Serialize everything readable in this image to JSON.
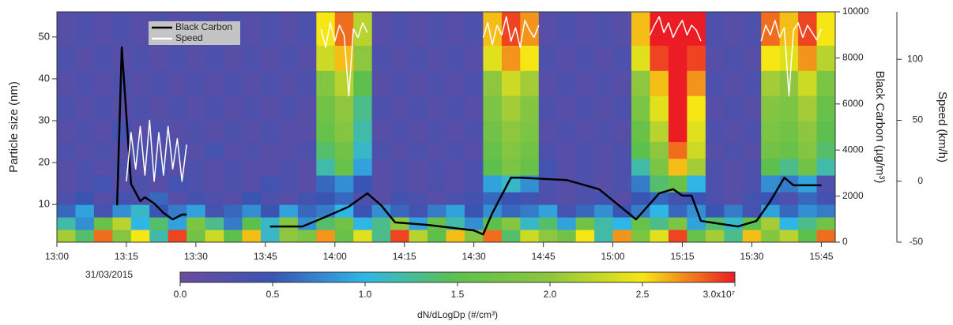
{
  "chart_data": {
    "type": "heatmap",
    "y_label": "Particle size (nm)",
    "y2_label": "Black Carbon (µg/m³)",
    "y3_label": "Speed (km/h)",
    "date_label": "31/03/2015",
    "xlim": [
      780,
      948
    ],
    "xticks": [
      {
        "value": 780,
        "label": "13:00"
      },
      {
        "value": 795,
        "label": "13:15"
      },
      {
        "value": 810,
        "label": "13:30"
      },
      {
        "value": 825,
        "label": "13:45"
      },
      {
        "value": 840,
        "label": "14:00"
      },
      {
        "value": 855,
        "label": "14:15"
      },
      {
        "value": 870,
        "label": "14:30"
      },
      {
        "value": 885,
        "label": "14:45"
      },
      {
        "value": 900,
        "label": "15:00"
      },
      {
        "value": 915,
        "label": "15:15"
      },
      {
        "value": 930,
        "label": "15:30"
      },
      {
        "value": 945,
        "label": "15:45"
      }
    ],
    "ylim": [
      1,
      56
    ],
    "yticks": [
      10,
      20,
      30,
      40,
      50
    ],
    "y2lim": [
      0,
      10000
    ],
    "y2ticks": [
      0,
      2000,
      4000,
      6000,
      8000,
      10000
    ],
    "y3lim": [
      -50,
      139
    ],
    "y3ticks": [
      -50,
      0,
      50,
      100
    ],
    "x_edges": [
      780,
      784,
      788,
      792,
      796,
      800,
      804,
      808,
      812,
      816,
      820,
      824,
      828,
      832,
      836,
      840,
      844,
      848,
      852,
      856,
      860,
      864,
      868,
      872,
      876,
      880,
      884,
      888,
      892,
      896,
      900,
      904,
      908,
      912,
      916,
      920,
      924,
      928,
      932,
      936,
      940,
      944,
      948
    ],
    "y_edges": [
      1,
      4,
      7,
      10,
      13,
      17,
      21,
      25,
      30,
      36,
      42,
      48,
      56
    ],
    "z": [
      [
        2.1,
        1.4,
        2.8,
        1.9,
        2.5,
        1.2,
        2.9,
        1.7,
        2.3,
        1.5,
        2.6,
        1.1,
        2.0,
        1.8,
        2.7,
        1.6,
        2.4,
        1.3,
        2.9,
        2.2,
        1.5,
        2.6,
        1.9,
        2.8,
        1.4,
        2.3,
        2.0,
        1.7,
        2.5,
        1.2,
        2.7,
        1.8,
        2.4,
        2.9,
        1.6,
        2.1,
        1.3,
        2.6,
        1.9,
        2.2,
        1.5,
        2.8
      ],
      [
        1.2,
        0.8,
        1.6,
        2.2,
        1.0,
        1.4,
        0.9,
        1.8,
        1.3,
        0.7,
        1.5,
        1.1,
        1.9,
        0.8,
        1.4,
        1.7,
        1.0,
        1.3,
        2.0,
        0.9,
        1.6,
        1.2,
        0.8,
        1.5,
        1.9,
        1.1,
        1.4,
        0.9,
        1.7,
        1.2,
        1.0,
        1.6,
        1.3,
        1.8,
        0.9,
        1.4,
        1.1,
        1.5,
        2.1,
        1.0,
        1.3,
        1.7
      ],
      [
        0.6,
        0.9,
        0.4,
        0.8,
        1.1,
        0.5,
        0.7,
        0.9,
        0.4,
        0.6,
        0.8,
        0.5,
        0.9,
        0.6,
        0.7,
        1.0,
        0.5,
        0.8,
        0.6,
        0.4,
        0.7,
        0.9,
        0.5,
        0.8,
        0.6,
        0.7,
        0.9,
        0.4,
        0.6,
        0.8,
        0.5,
        0.7,
        1.0,
        0.6,
        0.8,
        0.5,
        0.7,
        0.4,
        0.9,
        0.6,
        0.8,
        0.7
      ],
      [
        0.3,
        0.5,
        0.2,
        0.4,
        0.3,
        0.6,
        0.2,
        0.4,
        0.3,
        0.2,
        0.5,
        0.3,
        0.2,
        0.4,
        0.5,
        0.6,
        0.3,
        0.2,
        0.4,
        0.3,
        0.2,
        0.3,
        0.4,
        0.6,
        0.5,
        0.4,
        0.3,
        0.2,
        0.3,
        0.4,
        0.2,
        0.5,
        0.6,
        0.4,
        0.5,
        0.3,
        0.2,
        0.4,
        0.5,
        0.3,
        0.6,
        0.4
      ],
      [
        0.2,
        0.3,
        0.4,
        0.2,
        0.3,
        0.2,
        0.4,
        0.3,
        0.2,
        0.3,
        0.2,
        0.4,
        0.3,
        0.2,
        0.6,
        0.8,
        0.5,
        0.2,
        0.3,
        0.2,
        0.3,
        0.2,
        0.3,
        0.9,
        1.1,
        0.8,
        0.3,
        0.2,
        0.3,
        0.2,
        0.3,
        0.7,
        1.4,
        1.6,
        1.0,
        0.3,
        0.2,
        0.3,
        0.8,
        0.7,
        0.9,
        0.3
      ],
      [
        0.2,
        0.3,
        0.2,
        0.3,
        0.2,
        0.4,
        0.2,
        0.3,
        0.2,
        0.3,
        0.2,
        0.2,
        0.3,
        0.2,
        1.2,
        1.6,
        0.9,
        0.2,
        0.3,
        0.2,
        0.3,
        0.2,
        0.3,
        1.5,
        1.8,
        1.6,
        0.4,
        0.2,
        0.3,
        0.2,
        0.3,
        1.2,
        1.8,
        2.6,
        2.1,
        0.3,
        0.2,
        0.3,
        1.5,
        1.3,
        1.7,
        1.2
      ],
      [
        0.3,
        0.2,
        0.3,
        0.2,
        0.3,
        0.2,
        0.3,
        0.2,
        0.4,
        0.2,
        0.3,
        0.2,
        0.2,
        0.3,
        1.4,
        1.7,
        1.1,
        0.3,
        0.2,
        0.3,
        0.2,
        0.3,
        0.2,
        1.6,
        1.9,
        1.7,
        0.3,
        0.2,
        0.3,
        0.2,
        0.3,
        1.5,
        2.0,
        2.8,
        2.3,
        0.2,
        0.3,
        0.2,
        1.7,
        1.6,
        1.9,
        1.4
      ],
      [
        0.2,
        0.3,
        0.2,
        0.4,
        0.2,
        0.3,
        0.2,
        0.3,
        0.2,
        0.3,
        0.2,
        0.3,
        0.2,
        0.2,
        1.6,
        1.9,
        1.2,
        0.2,
        0.3,
        0.2,
        0.3,
        0.2,
        0.3,
        1.7,
        2.0,
        1.8,
        0.2,
        0.3,
        0.2,
        0.3,
        0.2,
        1.6,
        2.2,
        3.0,
        2.4,
        0.3,
        0.2,
        0.3,
        1.8,
        1.7,
        2.0,
        1.5
      ],
      [
        0.3,
        0.2,
        0.3,
        0.2,
        0.3,
        0.2,
        0.3,
        0.2,
        0.3,
        0.2,
        0.3,
        0.2,
        0.3,
        0.2,
        1.7,
        2.0,
        1.3,
        0.3,
        0.2,
        0.3,
        0.2,
        0.3,
        0.2,
        1.8,
        2.1,
        1.9,
        0.3,
        0.2,
        0.3,
        0.2,
        0.3,
        1.8,
        2.4,
        3.0,
        2.5,
        0.2,
        0.3,
        0.2,
        1.9,
        1.8,
        2.1,
        1.6
      ],
      [
        0.2,
        0.3,
        0.2,
        0.3,
        0.2,
        0.3,
        0.2,
        0.3,
        0.2,
        0.3,
        0.2,
        0.3,
        0.2,
        0.3,
        1.9,
        2.2,
        1.5,
        0.2,
        0.3,
        0.2,
        0.3,
        0.2,
        0.3,
        2.0,
        2.3,
        2.1,
        0.2,
        0.3,
        0.2,
        0.3,
        0.2,
        2.0,
        2.6,
        3.0,
        2.7,
        0.3,
        0.2,
        0.3,
        2.1,
        2.0,
        2.3,
        1.8
      ],
      [
        0.3,
        0.2,
        0.3,
        0.2,
        0.3,
        0.2,
        0.3,
        0.2,
        0.3,
        0.2,
        0.3,
        0.2,
        0.3,
        0.2,
        2.3,
        2.6,
        2.0,
        0.3,
        0.2,
        0.3,
        0.2,
        0.3,
        0.2,
        2.4,
        2.7,
        2.5,
        0.3,
        0.2,
        0.3,
        0.2,
        0.3,
        2.4,
        2.9,
        3.0,
        2.9,
        0.2,
        0.3,
        0.2,
        2.5,
        2.4,
        2.7,
        2.2
      ],
      [
        0.2,
        0.3,
        0.2,
        0.3,
        0.2,
        0.3,
        0.2,
        0.3,
        0.2,
        0.3,
        0.2,
        0.3,
        0.2,
        0.3,
        2.5,
        2.8,
        2.2,
        0.2,
        0.3,
        0.2,
        0.3,
        0.2,
        0.3,
        2.6,
        2.9,
        2.7,
        0.2,
        0.3,
        0.2,
        0.3,
        0.2,
        2.6,
        3.0,
        3.0,
        3.0,
        0.3,
        0.2,
        0.3,
        2.8,
        2.6,
        2.9,
        2.5
      ]
    ],
    "zlim": [
      0,
      3
    ],
    "colorscale": [
      "#6a4c9e",
      "#3a54b4",
      "#2fb6e6",
      "#5ec04c",
      "#8ec63f",
      "#f6e614",
      "#ec1c24"
    ],
    "colorbar": {
      "label": "dN/dLogDp (#/cm³)",
      "ticks": [
        {
          "value": 0,
          "label": "0.0"
        },
        {
          "value": 0.5,
          "label": "0.5"
        },
        {
          "value": 1,
          "label": "1.0"
        },
        {
          "value": 1.5,
          "label": "1.5"
        },
        {
          "value": 2,
          "label": "2.0"
        },
        {
          "value": 2.5,
          "label": "2.5"
        },
        {
          "value": 3,
          "label": "3.0x10⁷"
        }
      ]
    },
    "legend": "top-left",
    "series": [
      {
        "name": "Black Carbon",
        "color": "#000000",
        "axis": "y2",
        "x": [
          793,
          794,
          796,
          798,
          799,
          801,
          803,
          805,
          807,
          808,
          817,
          826,
          833,
          838,
          843,
          847,
          850,
          853,
          860,
          870,
          872,
          874,
          878,
          880,
          890,
          897,
          905,
          910,
          913,
          915,
          917,
          919,
          927,
          931,
          934,
          937,
          939,
          945
        ],
        "values": [
          1600,
          8460,
          2530,
          1780,
          1950,
          1680,
          1270,
          990,
          1200,
          1200,
          null,
          680,
          680,
          1100,
          1540,
          2120,
          1600,
          860,
          750,
          510,
          340,
          1270,
          2800,
          2800,
          2700,
          2300,
          990,
          2120,
          2300,
          2020,
          2020,
          920,
          680,
          920,
          1780,
          2800,
          2470,
          2470
        ]
      },
      {
        "name": "Speed",
        "color": "#ffffff",
        "axis": "y3",
        "x": [
          795,
          796,
          797,
          798,
          799,
          800,
          801,
          802,
          803,
          804,
          805,
          806,
          807,
          808,
          812,
          837,
          838,
          839,
          840,
          841,
          842,
          843,
          844,
          845,
          846,
          847,
          850,
          872,
          873,
          874,
          875,
          876,
          877,
          878,
          879,
          880,
          881,
          882,
          883,
          884,
          890,
          908,
          909,
          910,
          911,
          912,
          913,
          914,
          915,
          916,
          917,
          918,
          919,
          925,
          932,
          933,
          934,
          935,
          936,
          937,
          938,
          939,
          940,
          941,
          942,
          943,
          944,
          945
        ],
        "values": [
          0,
          40,
          10,
          45,
          5,
          50,
          0,
          40,
          5,
          45,
          10,
          35,
          0,
          30,
          null,
          125,
          110,
          130,
          115,
          128,
          120,
          70,
          125,
          118,
          130,
          122,
          null,
          118,
          130,
          112,
          128,
          120,
          135,
          115,
          126,
          110,
          132,
          124,
          118,
          128,
          null,
          120,
          128,
          135,
          122,
          130,
          118,
          126,
          132,
          120,
          128,
          124,
          115,
          null,
          115,
          128,
          120,
          132,
          118,
          126,
          70,
          124,
          130,
          118,
          128,
          122,
          116,
          125
        ]
      }
    ]
  }
}
